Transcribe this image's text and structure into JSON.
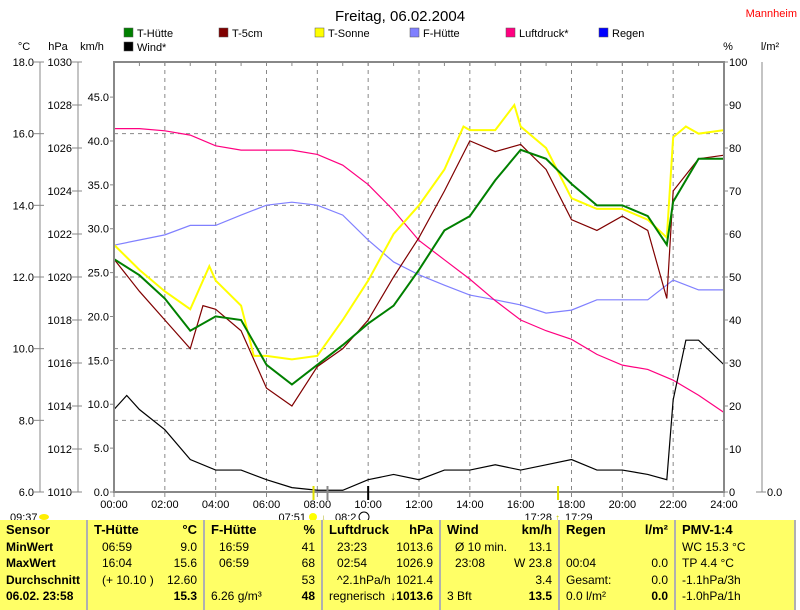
{
  "title": "Freitag, 06.02.2004",
  "location": "Mannheim",
  "legend": [
    {
      "name": "T-Hütte",
      "color": "#008000"
    },
    {
      "name": "T-5cm",
      "color": "#800000"
    },
    {
      "name": "T-Sonne",
      "color": "#ffff00"
    },
    {
      "name": "F-Hütte",
      "color": "#8080ff"
    },
    {
      "name": "Luftdruck*",
      "color": "#ff0080"
    },
    {
      "name": "Regen",
      "color": "#0000ff"
    },
    {
      "name": "Wind*",
      "color": "#000000"
    }
  ],
  "axis_units": {
    "temp": "°C",
    "pressure": "hPa",
    "wind": "km/h",
    "humidity": "%",
    "rain": "l/m²"
  },
  "astro": {
    "left_time": "09:37",
    "sunrise": "07:51",
    "moon_set": "08:2",
    "sunset": "17:28",
    "moon_rise": "17:29"
  },
  "chart_data": {
    "type": "line",
    "title": "Freitag, 06.02.2004",
    "x_ticks": [
      "00:00",
      "02:00",
      "04:00",
      "06:00",
      "08:00",
      "10:00",
      "12:00",
      "14:00",
      "16:00",
      "18:00",
      "20:00",
      "22:00",
      "24:00"
    ],
    "xlim": [
      0,
      24
    ],
    "axes": {
      "temp": {
        "unit": "°C",
        "range": [
          6,
          18
        ],
        "ticks": [
          "6.0",
          "8.0",
          "10.0",
          "12.0",
          "14.0",
          "16.0",
          "18.0"
        ]
      },
      "pressure": {
        "unit": "hPa",
        "range": [
          1010,
          1030
        ],
        "ticks": [
          "1010",
          "1012",
          "1014",
          "1016",
          "1018",
          "1020",
          "1022",
          "1024",
          "1026",
          "1028",
          "1030"
        ]
      },
      "wind": {
        "unit": "km/h",
        "range": [
          0,
          49
        ],
        "ticks": [
          "0.0",
          "5.0",
          "10.0",
          "15.0",
          "20.0",
          "25.0",
          "30.0",
          "35.0",
          "40.0",
          "45.0"
        ]
      },
      "humidity": {
        "unit": "%",
        "range": [
          0,
          100
        ],
        "ticks": [
          "0",
          "10",
          "20",
          "30",
          "40",
          "50",
          "60",
          "70",
          "80",
          "90",
          "100"
        ]
      },
      "rain": {
        "unit": "l/m²",
        "range": [
          0,
          1
        ],
        "ticks": [
          "0.0"
        ]
      }
    },
    "grid": true,
    "series": [
      {
        "name": "T-Hütte",
        "axis": "temp",
        "color": "#008000",
        "x": [
          0,
          1,
          2,
          3,
          4,
          5,
          6,
          7,
          8,
          9,
          10,
          11,
          12,
          13,
          14,
          15,
          16,
          17,
          18,
          19,
          20,
          21,
          21.75,
          22,
          23,
          24
        ],
        "values": [
          12.5,
          12.05,
          11.4,
          10.5,
          10.9,
          10.8,
          9.55,
          9.0,
          9.55,
          10.1,
          10.7,
          11.2,
          12.2,
          13.3,
          13.7,
          14.7,
          15.55,
          15.3,
          14.6,
          14.0,
          14.0,
          13.7,
          12.9,
          14.1,
          15.3,
          15.3
        ]
      },
      {
        "name": "T-5cm",
        "axis": "temp",
        "color": "#800000",
        "x": [
          0,
          1,
          2,
          3,
          3.5,
          4,
          5,
          6,
          7,
          8,
          9,
          10,
          11,
          12,
          13,
          14,
          15,
          16,
          17,
          18,
          19,
          20,
          21,
          21.75,
          22,
          23,
          24
        ],
        "values": [
          12.5,
          11.6,
          10.8,
          10.0,
          11.2,
          11.1,
          10.5,
          8.9,
          8.4,
          9.5,
          10.0,
          10.8,
          12.0,
          13.1,
          14.4,
          15.8,
          15.5,
          15.7,
          15.0,
          13.6,
          13.3,
          13.7,
          13.3,
          11.4,
          14.4,
          15.3,
          15.4
        ]
      },
      {
        "name": "T-Sonne",
        "axis": "temp",
        "color": "#ffff00",
        "x": [
          0,
          1,
          2,
          3,
          3.75,
          4,
          5,
          5.5,
          6,
          7,
          8,
          9,
          10,
          11,
          12,
          13,
          13.75,
          14,
          15,
          15.75,
          16,
          17,
          18,
          19,
          20,
          21,
          21.75,
          22,
          22.5,
          23,
          24
        ],
        "values": [
          12.9,
          12.2,
          11.6,
          11.1,
          12.3,
          11.9,
          11.2,
          9.8,
          9.8,
          9.7,
          9.8,
          10.8,
          11.9,
          13.2,
          14.0,
          15.0,
          16.2,
          16.1,
          16.1,
          16.8,
          16.2,
          15.6,
          14.2,
          13.9,
          13.9,
          13.6,
          13.1,
          15.9,
          16.2,
          16.0,
          16.1
        ]
      },
      {
        "name": "F-Hütte",
        "axis": "humidity",
        "color": "#8080ff",
        "x": [
          0,
          1,
          2,
          3,
          4,
          5,
          6,
          7,
          8,
          9,
          10,
          11,
          12,
          13,
          14,
          15,
          16,
          17,
          18,
          19,
          20,
          21,
          22,
          23,
          24
        ],
        "values": [
          57.4,
          58.6,
          59.8,
          62,
          62,
          64.4,
          66.7,
          67.4,
          66.7,
          64.4,
          58.6,
          53.5,
          50.5,
          48.1,
          45.8,
          44.7,
          43.5,
          41.6,
          42.3,
          44.7,
          44.7,
          44.7,
          49.3,
          47,
          47
        ]
      },
      {
        "name": "Luftdruck*",
        "axis": "pressure",
        "color": "#ff0080",
        "x": [
          0,
          1,
          2,
          3,
          4,
          5,
          6,
          7,
          8,
          9,
          10,
          11,
          12,
          13,
          14,
          15,
          16,
          17,
          18,
          19,
          20,
          21,
          22,
          23,
          24
        ],
        "values": [
          1026.9,
          1026.9,
          1026.8,
          1026.6,
          1026.1,
          1025.9,
          1025.9,
          1025.9,
          1025.7,
          1025.2,
          1024.3,
          1023.1,
          1021.7,
          1020.8,
          1019.9,
          1018.9,
          1018.0,
          1017.5,
          1017.1,
          1016.4,
          1015.9,
          1015.7,
          1015.2,
          1014.5,
          1013.7
        ]
      },
      {
        "name": "Wind*",
        "axis": "wind",
        "color": "#000000",
        "x": [
          0,
          0.5,
          1,
          2,
          3,
          4,
          5,
          6,
          7,
          8,
          9,
          10,
          11,
          12,
          13,
          14,
          15,
          16,
          17,
          18,
          19,
          20,
          21,
          21.75,
          22,
          22.5,
          23,
          24
        ],
        "values": [
          9.4,
          11,
          9.4,
          7.1,
          3.7,
          2.5,
          2.5,
          1.4,
          0.5,
          0.2,
          0.2,
          1.4,
          2.0,
          1.4,
          2.5,
          2.5,
          3.1,
          2.5,
          3.1,
          3.7,
          2.5,
          2.5,
          2.0,
          1.4,
          10.5,
          17.3,
          17.3,
          14.5
        ]
      },
      {
        "name": "Regen",
        "axis": "rain",
        "color": "#0000ff",
        "x": [
          0,
          24
        ],
        "values": [
          0,
          0
        ]
      }
    ]
  },
  "table": {
    "sensor": {
      "header": "Sensor",
      "rows": [
        "MinWert",
        "MaxWert",
        "Durchschnitt",
        "06.02. 23:58"
      ]
    },
    "columns": [
      {
        "header": "T-Hütte",
        "unit": "°C",
        "rows": [
          [
            "06:59",
            "9.0"
          ],
          [
            "16:04",
            "15.6"
          ],
          [
            "(+ 10.10 )",
            "12.60"
          ],
          [
            "",
            "15.3"
          ]
        ]
      },
      {
        "header": "F-Hütte",
        "unit": "%",
        "rows": [
          [
            "16:59",
            "41"
          ],
          [
            "06:59",
            "68"
          ],
          [
            "",
            "53"
          ],
          [
            "6.26 g/m³",
            "48"
          ]
        ]
      },
      {
        "header": "Luftdruck",
        "unit": "hPa",
        "rows": [
          [
            "23:23",
            "1013.6"
          ],
          [
            "02:54",
            "1026.9"
          ],
          [
            "^2.1hPa/h",
            "1021.4"
          ],
          [
            "regnerisch",
            "↓1013.6"
          ]
        ]
      },
      {
        "header": "Wind",
        "unit": "km/h",
        "rows": [
          [
            "Ø 10 min.",
            "13.1"
          ],
          [
            "23:08",
            "W 23.8"
          ],
          [
            "",
            "3.4"
          ],
          [
            "3 Bft",
            "13.5"
          ]
        ]
      },
      {
        "header": "Regen",
        "unit": "l/m²",
        "rows": [
          [
            "",
            ""
          ],
          [
            "00:04",
            "0.0"
          ],
          [
            "Gesamt:",
            "0.0"
          ],
          [
            "0.0 l/m²",
            "0.0"
          ]
        ]
      },
      {
        "header": "PMV-1:4",
        "unit": "",
        "rows": [
          [
            "WC 15.3 °C",
            ""
          ],
          [
            "TP 4.4 °C",
            ""
          ],
          [
            "-1.1hPa/3h",
            ""
          ],
          [
            "-1.0hPa/1h",
            ""
          ]
        ]
      }
    ]
  }
}
